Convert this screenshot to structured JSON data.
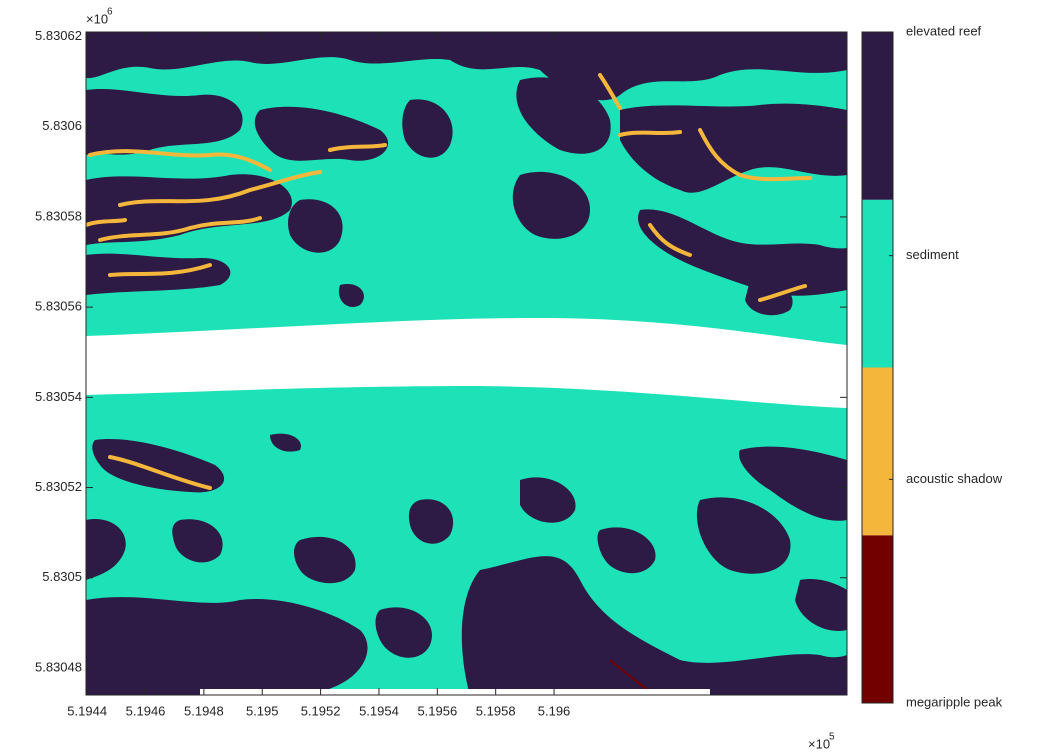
{
  "chart_data": {
    "type": "heatmap",
    "xlim": [
      5.194396,
      5.197004
    ],
    "xticks": [
      5.1944,
      5.1946,
      5.1948,
      5.195,
      5.1952,
      5.1954,
      5.1956,
      5.1958,
      5.196
    ],
    "x_scale_base": "×10",
    "x_scale_power": "5",
    "ylim": [
      5.830474,
      5.830621
    ],
    "yticks": [
      5.83048,
      5.8305,
      5.83052,
      5.83054,
      5.83056,
      5.83058,
      5.8306,
      5.83062
    ],
    "y_scale_base": "×10",
    "y_scale_power": "6",
    "colorbar": {
      "clim": [
        1,
        4
      ],
      "colors": [
        "#730000",
        "#f5b73b",
        "#1ee2b7",
        "#2d1a45"
      ],
      "ticks": [
        {
          "value": 1,
          "label": "megaripple peak"
        },
        {
          "value": 2,
          "label": "acoustic shadow"
        },
        {
          "value": 3,
          "label": "sediment"
        },
        {
          "value": 4,
          "label": "elevated reef"
        }
      ]
    }
  }
}
